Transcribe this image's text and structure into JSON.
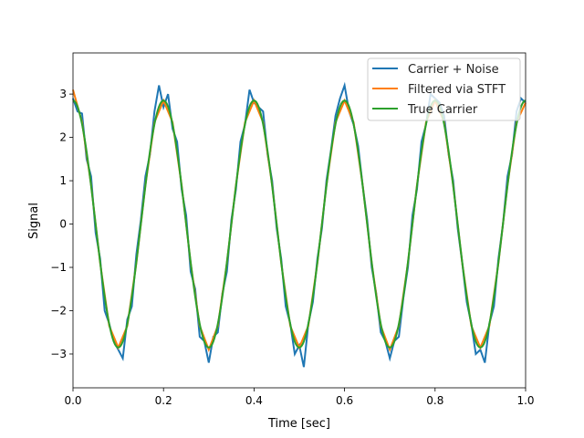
{
  "chart_data": {
    "type": "line",
    "title": "",
    "xlabel": "Time [sec]",
    "ylabel": "Signal",
    "xlim": [
      0,
      1.0
    ],
    "ylim": [
      -3.78,
      3.95
    ],
    "xticks": [
      "0.0",
      "0.2",
      "0.4",
      "0.6",
      "0.8",
      "1.0"
    ],
    "xtick_values": [
      0,
      0.2,
      0.4,
      0.6,
      0.8,
      1.0
    ],
    "yticks": [
      "−3",
      "−2",
      "−1",
      "0",
      "1",
      "2",
      "3"
    ],
    "ytick_values": [
      -3,
      -2,
      -1,
      0,
      1,
      2,
      3
    ],
    "grid": false,
    "legend_position": "top-right",
    "series": [
      {
        "name": "Carrier + Noise",
        "color": "#1f77b4",
        "x_start": 0,
        "x_step": 0.01,
        "y": [
          2.9,
          2.6,
          2.55,
          1.5,
          1.1,
          -0.2,
          -0.8,
          -2.0,
          -2.3,
          -2.7,
          -2.9,
          -3.1,
          -2.2,
          -1.9,
          -0.7,
          0.1,
          1.1,
          1.6,
          2.6,
          3.2,
          2.7,
          3.0,
          2.2,
          1.9,
          0.8,
          0.2,
          -1.1,
          -1.5,
          -2.6,
          -2.7,
          -3.2,
          -2.6,
          -2.5,
          -1.6,
          -1.1,
          0.1,
          0.8,
          1.9,
          2.3,
          3.1,
          2.8,
          2.7,
          2.6,
          1.6,
          1.0,
          -0.1,
          -0.8,
          -1.9,
          -2.3,
          -3.0,
          -2.8,
          -3.3,
          -2.3,
          -1.8,
          -0.8,
          -0.1,
          1.0,
          1.7,
          2.5,
          2.9,
          3.2,
          2.6,
          2.3,
          1.8,
          0.9,
          0.1,
          -1.0,
          -1.6,
          -2.5,
          -2.7,
          -3.1,
          -2.7,
          -2.6,
          -1.7,
          -1.0,
          0.2,
          0.8,
          1.9,
          2.3,
          3.0,
          2.9,
          2.8,
          2.5,
          1.6,
          1.0,
          -0.1,
          -0.9,
          -1.8,
          -2.3,
          -3.0,
          -2.9,
          -3.2,
          -2.3,
          -1.9,
          -0.8,
          0.0,
          1.1,
          1.6,
          2.6,
          2.9,
          2.8
        ]
      },
      {
        "name": "Filtered via STFT",
        "color": "#ff7f0e",
        "x_start": 0,
        "x_step": 0.02,
        "y": [
          3.1,
          2.35,
          0.9,
          -0.9,
          -2.35,
          -2.85,
          -2.35,
          -0.9,
          0.9,
          2.35,
          2.85,
          2.35,
          0.9,
          -0.9,
          -2.35,
          -2.9,
          -2.35,
          -0.9,
          0.9,
          2.35,
          2.85,
          2.35,
          0.9,
          -0.9,
          -2.35,
          -2.85,
          -2.35,
          -0.9,
          0.9,
          2.35,
          2.85,
          2.35,
          0.9,
          -0.9,
          -2.35,
          -2.9,
          -2.35,
          -0.9,
          0.9,
          2.35,
          2.85,
          2.35,
          0.9,
          -0.9,
          -2.35,
          -2.85,
          -2.35,
          -0.9,
          0.9,
          2.35,
          2.8
        ]
      },
      {
        "name": "True Carrier",
        "color": "#2ca02c",
        "function": "2.85*cos(2*pi*5*t)"
      }
    ]
  }
}
